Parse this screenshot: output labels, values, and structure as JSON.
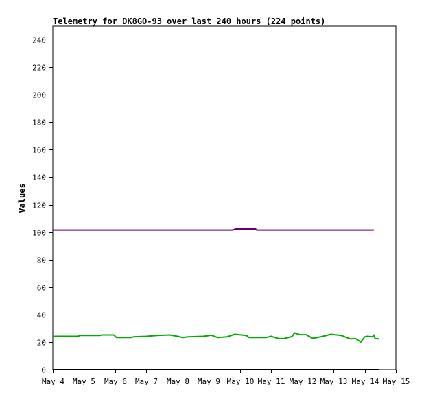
{
  "chart_data": {
    "type": "line",
    "title": "Telemetry for DK8GO-93 over last 240 hours (224 points)",
    "xlabel": "",
    "ylabel": "Values",
    "xlim": [
      "May 4",
      "May 15"
    ],
    "ylim": [
      0,
      250
    ],
    "x_ticks": [
      "May 4",
      "May 5",
      "May 6",
      "May 7",
      "May 8",
      "May 9",
      "May 10",
      "May 11",
      "May 12",
      "May 13",
      "May 14",
      "May 15"
    ],
    "y_ticks": [
      0,
      20,
      40,
      60,
      80,
      100,
      120,
      140,
      160,
      180,
      200,
      220,
      240
    ],
    "grid": false,
    "legend": "none",
    "series": [
      {
        "color": "#660066",
        "points": [
          [
            "May 4 00:00",
            101.5
          ],
          [
            "May 5 00:00",
            101.5
          ],
          [
            "May 6 00:00",
            101.5
          ],
          [
            "May 7 00:00",
            101.5
          ],
          [
            "May 8 00:00",
            101.5
          ],
          [
            "May 9 00:00",
            101.5
          ],
          [
            "May 9 18:00",
            101.5
          ],
          [
            "May 9 21:00",
            102.3
          ],
          [
            "May 10 12:00",
            102.3
          ],
          [
            "May 10 13:00",
            101.5
          ],
          [
            "May 11 00:00",
            101.5
          ],
          [
            "May 12 00:00",
            101.5
          ],
          [
            "May 13 00:00",
            101.5
          ],
          [
            "May 14 00:00",
            101.5
          ],
          [
            "May 14 07:00",
            101.5
          ]
        ]
      },
      {
        "color": "#00aa00",
        "points": [
          [
            "May 4 00:00",
            24.2
          ],
          [
            "May 4 19:00",
            24.2
          ],
          [
            "May 4 21:00",
            24.8
          ],
          [
            "May 5 12:00",
            24.8
          ],
          [
            "May 5 14:00",
            25.2
          ],
          [
            "May 5 23:00",
            25.2
          ],
          [
            "May 6 01:00",
            23.3
          ],
          [
            "May 6 12:00",
            23.3
          ],
          [
            "May 6 14:00",
            23.8
          ],
          [
            "May 7 00:00",
            24.2
          ],
          [
            "May 7 08:00",
            24.8
          ],
          [
            "May 7 18:00",
            25.2
          ],
          [
            "May 8 00:00",
            24.2
          ],
          [
            "May 8 04:00",
            23.3
          ],
          [
            "May 8 08:00",
            23.8
          ],
          [
            "May 8 20:00",
            24.2
          ],
          [
            "May 9 02:00",
            25.0
          ],
          [
            "May 9 07:00",
            23.3
          ],
          [
            "May 9 14:00",
            23.8
          ],
          [
            "May 9 20:00",
            25.7
          ],
          [
            "May 10 05:00",
            24.8
          ],
          [
            "May 10 07:00",
            23.3
          ],
          [
            "May 10 20:00",
            23.3
          ],
          [
            "May 11 00:00",
            24.2
          ],
          [
            "May 11 06:00",
            22.5
          ],
          [
            "May 11 10:00",
            22.5
          ],
          [
            "May 11 16:00",
            24.0
          ],
          [
            "May 11 18:00",
            26.7
          ],
          [
            "May 11 22:00",
            25.4
          ],
          [
            "May 12 03:00",
            25.4
          ],
          [
            "May 12 08:00",
            22.7
          ],
          [
            "May 12 16:00",
            24.2
          ],
          [
            "May 12 22:00",
            25.7
          ],
          [
            "May 13 06:00",
            24.8
          ],
          [
            "May 13 13:00",
            22.3
          ],
          [
            "May 13 17:00",
            22.5
          ],
          [
            "May 13 21:00",
            20.0
          ],
          [
            "May 14 00:00",
            23.8
          ],
          [
            "May 14 02:00",
            24.2
          ],
          [
            "May 14 06:00",
            23.8
          ],
          [
            "May 14 07:00",
            25.2
          ],
          [
            "May 14 08:00",
            22.5
          ],
          [
            "May 14 11:00",
            22.3
          ]
        ]
      },
      {
        "color": "#000000",
        "points": [
          [
            "May 4 00:00",
            0
          ],
          [
            "May 14 11:00",
            0
          ]
        ]
      }
    ]
  }
}
